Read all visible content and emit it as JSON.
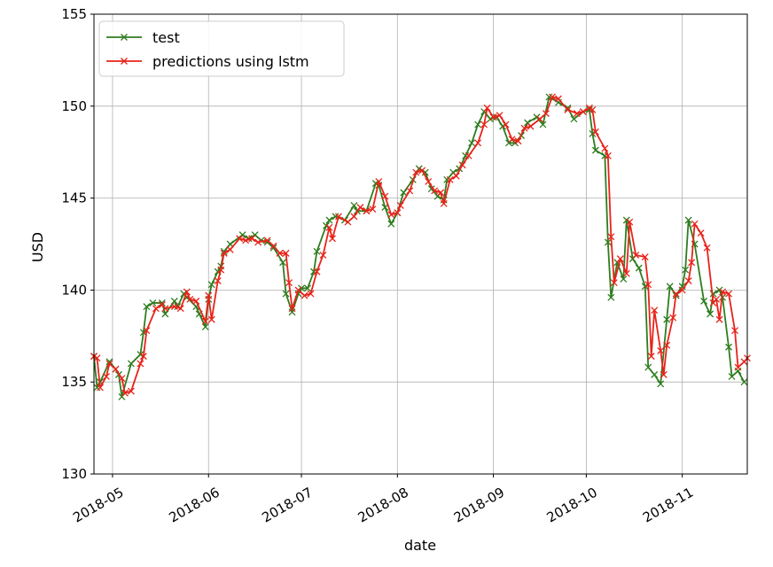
{
  "chart_data": {
    "type": "line",
    "title": "",
    "xlabel": "date",
    "ylabel": "USD",
    "xlim": [
      "2018-04-25",
      "2018-11-22"
    ],
    "ylim": [
      130,
      155
    ],
    "x_ticks": [
      {
        "date": "2018-05-01",
        "label": "2018-05"
      },
      {
        "date": "2018-06-01",
        "label": "2018-06"
      },
      {
        "date": "2018-07-01",
        "label": "2018-07"
      },
      {
        "date": "2018-08-01",
        "label": "2018-08"
      },
      {
        "date": "2018-09-01",
        "label": "2018-09"
      },
      {
        "date": "2018-10-01",
        "label": "2018-10"
      },
      {
        "date": "2018-11-01",
        "label": "2018-11"
      }
    ],
    "y_ticks": [
      130,
      135,
      140,
      145,
      150,
      155
    ],
    "grid": true,
    "legend_position": "top-left",
    "marker": "x",
    "series": [
      {
        "name": "test",
        "color": "#2e7d1f",
        "points": [
          [
            "2018-04-25",
            136.4
          ],
          [
            "2018-04-26",
            134.7
          ],
          [
            "2018-04-27",
            135.0
          ],
          [
            "2018-04-30",
            136.1
          ],
          [
            "2018-05-02",
            135.7
          ],
          [
            "2018-05-03",
            135.4
          ],
          [
            "2018-05-04",
            134.2
          ],
          [
            "2018-05-07",
            136.0
          ],
          [
            "2018-05-10",
            136.5
          ],
          [
            "2018-05-11",
            137.7
          ],
          [
            "2018-05-12",
            139.1
          ],
          [
            "2018-05-14",
            139.3
          ],
          [
            "2018-05-17",
            139.3
          ],
          [
            "2018-05-18",
            138.7
          ],
          [
            "2018-05-21",
            139.4
          ],
          [
            "2018-05-22",
            139.1
          ],
          [
            "2018-05-24",
            139.8
          ],
          [
            "2018-05-25",
            139.6
          ],
          [
            "2018-05-28",
            139.1
          ],
          [
            "2018-05-29",
            138.7
          ],
          [
            "2018-05-31",
            138.0
          ],
          [
            "2018-06-01",
            139.5
          ],
          [
            "2018-06-02",
            140.3
          ],
          [
            "2018-06-04",
            141.0
          ],
          [
            "2018-06-05",
            141.3
          ],
          [
            "2018-06-06",
            142.1
          ],
          [
            "2018-06-08",
            142.5
          ],
          [
            "2018-06-12",
            143.0
          ],
          [
            "2018-06-14",
            142.8
          ],
          [
            "2018-06-16",
            143.0
          ],
          [
            "2018-06-18",
            142.7
          ],
          [
            "2018-06-20",
            142.6
          ],
          [
            "2018-06-22",
            142.3
          ],
          [
            "2018-06-25",
            141.5
          ],
          [
            "2018-06-26",
            139.8
          ],
          [
            "2018-06-28",
            138.8
          ],
          [
            "2018-06-30",
            139.8
          ],
          [
            "2018-07-01",
            140.1
          ],
          [
            "2018-07-03",
            140.1
          ],
          [
            "2018-07-05",
            141.0
          ],
          [
            "2018-07-06",
            142.1
          ],
          [
            "2018-07-09",
            143.5
          ],
          [
            "2018-07-10",
            143.8
          ],
          [
            "2018-07-12",
            144.0
          ],
          [
            "2018-07-15",
            143.8
          ],
          [
            "2018-07-18",
            144.6
          ],
          [
            "2018-07-19",
            144.3
          ],
          [
            "2018-07-22",
            144.3
          ],
          [
            "2018-07-25",
            145.8
          ],
          [
            "2018-07-26",
            145.7
          ],
          [
            "2018-07-28",
            144.5
          ],
          [
            "2018-07-30",
            143.6
          ],
          [
            "2018-08-01",
            144.2
          ],
          [
            "2018-08-03",
            145.3
          ],
          [
            "2018-08-06",
            146.0
          ],
          [
            "2018-08-08",
            146.6
          ],
          [
            "2018-08-10",
            146.4
          ],
          [
            "2018-08-12",
            145.5
          ],
          [
            "2018-08-14",
            145.1
          ],
          [
            "2018-08-16",
            144.9
          ],
          [
            "2018-08-17",
            146.0
          ],
          [
            "2018-08-19",
            146.4
          ],
          [
            "2018-08-21",
            146.6
          ],
          [
            "2018-08-23",
            147.3
          ],
          [
            "2018-08-25",
            148.0
          ],
          [
            "2018-08-27",
            149.0
          ],
          [
            "2018-08-29",
            149.7
          ],
          [
            "2018-08-31",
            149.3
          ],
          [
            "2018-09-02",
            149.4
          ],
          [
            "2018-09-04",
            148.9
          ],
          [
            "2018-09-06",
            148.0
          ],
          [
            "2018-09-08",
            148.0
          ],
          [
            "2018-09-10",
            148.4
          ],
          [
            "2018-09-12",
            149.1
          ],
          [
            "2018-09-15",
            149.4
          ],
          [
            "2018-09-17",
            149.0
          ],
          [
            "2018-09-19",
            150.5
          ],
          [
            "2018-09-22",
            150.2
          ],
          [
            "2018-09-25",
            149.9
          ],
          [
            "2018-09-27",
            149.3
          ],
          [
            "2018-09-30",
            149.7
          ],
          [
            "2018-10-02",
            149.8
          ],
          [
            "2018-10-03",
            148.5
          ],
          [
            "2018-10-04",
            147.6
          ],
          [
            "2018-10-07",
            147.3
          ],
          [
            "2018-10-08",
            142.6
          ],
          [
            "2018-10-09",
            139.6
          ],
          [
            "2018-10-11",
            141.5
          ],
          [
            "2018-10-13",
            140.6
          ],
          [
            "2018-10-14",
            143.8
          ],
          [
            "2018-10-16",
            141.7
          ],
          [
            "2018-10-18",
            141.2
          ],
          [
            "2018-10-20",
            140.2
          ],
          [
            "2018-10-21",
            135.8
          ],
          [
            "2018-10-23",
            135.4
          ],
          [
            "2018-10-25",
            134.9
          ],
          [
            "2018-10-27",
            138.4
          ],
          [
            "2018-10-28",
            140.2
          ],
          [
            "2018-10-30",
            139.7
          ],
          [
            "2018-11-01",
            140.2
          ],
          [
            "2018-11-02",
            141.1
          ],
          [
            "2018-11-03",
            143.8
          ],
          [
            "2018-11-05",
            142.5
          ],
          [
            "2018-11-08",
            139.4
          ],
          [
            "2018-11-10",
            138.7
          ],
          [
            "2018-11-11",
            139.8
          ],
          [
            "2018-11-13",
            140.0
          ],
          [
            "2018-11-14",
            139.6
          ],
          [
            "2018-11-16",
            136.9
          ],
          [
            "2018-11-17",
            135.3
          ],
          [
            "2018-11-19",
            135.6
          ],
          [
            "2018-11-21",
            135.0
          ]
        ]
      },
      {
        "name": "predictions using lstm",
        "color": "#e8231a",
        "points": [
          [
            "2018-04-25",
            136.4
          ],
          [
            "2018-04-26",
            136.3
          ],
          [
            "2018-04-27",
            134.7
          ],
          [
            "2018-04-29",
            135.3
          ],
          [
            "2018-04-30",
            136.0
          ],
          [
            "2018-05-02",
            135.7
          ],
          [
            "2018-05-04",
            135.2
          ],
          [
            "2018-05-05",
            134.4
          ],
          [
            "2018-05-07",
            134.5
          ],
          [
            "2018-05-10",
            136.0
          ],
          [
            "2018-05-11",
            136.4
          ],
          [
            "2018-05-12",
            137.8
          ],
          [
            "2018-05-15",
            139.0
          ],
          [
            "2018-05-17",
            139.2
          ],
          [
            "2018-05-18",
            139.0
          ],
          [
            "2018-05-21",
            139.1
          ],
          [
            "2018-05-23",
            139.0
          ],
          [
            "2018-05-25",
            139.9
          ],
          [
            "2018-05-26",
            139.5
          ],
          [
            "2018-05-28",
            139.4
          ],
          [
            "2018-05-31",
            138.3
          ],
          [
            "2018-06-01",
            139.7
          ],
          [
            "2018-06-02",
            138.4
          ],
          [
            "2018-06-04",
            140.5
          ],
          [
            "2018-06-05",
            141.1
          ],
          [
            "2018-06-06",
            142.0
          ],
          [
            "2018-06-08",
            142.2
          ],
          [
            "2018-06-11",
            142.8
          ],
          [
            "2018-06-13",
            142.7
          ],
          [
            "2018-06-15",
            142.8
          ],
          [
            "2018-06-17",
            142.6
          ],
          [
            "2018-06-20",
            142.7
          ],
          [
            "2018-06-22",
            142.4
          ],
          [
            "2018-06-24",
            142.0
          ],
          [
            "2018-06-26",
            142.0
          ],
          [
            "2018-06-27",
            140.4
          ],
          [
            "2018-06-28",
            139.0
          ],
          [
            "2018-06-30",
            140.0
          ],
          [
            "2018-07-02",
            139.7
          ],
          [
            "2018-07-04",
            139.8
          ],
          [
            "2018-07-06",
            141.0
          ],
          [
            "2018-07-08",
            141.9
          ],
          [
            "2018-07-10",
            143.4
          ],
          [
            "2018-07-11",
            142.8
          ],
          [
            "2018-07-13",
            144.0
          ],
          [
            "2018-07-16",
            143.7
          ],
          [
            "2018-07-18",
            144.0
          ],
          [
            "2018-07-20",
            144.5
          ],
          [
            "2018-07-22",
            144.3
          ],
          [
            "2018-07-24",
            144.4
          ],
          [
            "2018-07-26",
            145.9
          ],
          [
            "2018-07-28",
            145.1
          ],
          [
            "2018-07-30",
            144.1
          ],
          [
            "2018-08-01",
            144.2
          ],
          [
            "2018-08-02",
            144.6
          ],
          [
            "2018-08-05",
            145.4
          ],
          [
            "2018-08-07",
            146.4
          ],
          [
            "2018-08-09",
            146.5
          ],
          [
            "2018-08-11",
            145.9
          ],
          [
            "2018-08-13",
            145.4
          ],
          [
            "2018-08-15",
            145.3
          ],
          [
            "2018-08-16",
            144.7
          ],
          [
            "2018-08-18",
            146.0
          ],
          [
            "2018-08-20",
            146.2
          ],
          [
            "2018-08-22",
            146.8
          ],
          [
            "2018-08-24",
            147.3
          ],
          [
            "2018-08-27",
            148.0
          ],
          [
            "2018-08-29",
            149.0
          ],
          [
            "2018-08-30",
            149.9
          ],
          [
            "2018-09-01",
            149.4
          ],
          [
            "2018-09-03",
            149.5
          ],
          [
            "2018-09-05",
            149.0
          ],
          [
            "2018-09-07",
            148.2
          ],
          [
            "2018-09-09",
            148.1
          ],
          [
            "2018-09-11",
            148.8
          ],
          [
            "2018-09-13",
            148.9
          ],
          [
            "2018-09-16",
            149.3
          ],
          [
            "2018-09-18",
            149.6
          ],
          [
            "2018-09-20",
            150.5
          ],
          [
            "2018-09-22",
            150.4
          ],
          [
            "2018-09-25",
            149.8
          ],
          [
            "2018-09-28",
            149.6
          ],
          [
            "2018-09-30",
            149.7
          ],
          [
            "2018-10-02",
            149.9
          ],
          [
            "2018-10-03",
            149.8
          ],
          [
            "2018-10-04",
            148.6
          ],
          [
            "2018-10-07",
            147.7
          ],
          [
            "2018-10-08",
            147.3
          ],
          [
            "2018-10-09",
            142.9
          ],
          [
            "2018-10-10",
            140.4
          ],
          [
            "2018-10-12",
            141.7
          ],
          [
            "2018-10-14",
            140.9
          ],
          [
            "2018-10-15",
            143.7
          ],
          [
            "2018-10-17",
            141.9
          ],
          [
            "2018-10-20",
            141.8
          ],
          [
            "2018-10-21",
            140.3
          ],
          [
            "2018-10-22",
            136.4
          ],
          [
            "2018-10-23",
            138.9
          ],
          [
            "2018-10-25",
            136.7
          ],
          [
            "2018-10-26",
            135.4
          ],
          [
            "2018-10-27",
            137.0
          ],
          [
            "2018-10-29",
            138.5
          ],
          [
            "2018-10-30",
            139.8
          ],
          [
            "2018-11-01",
            140.0
          ],
          [
            "2018-11-03",
            140.5
          ],
          [
            "2018-11-04",
            141.5
          ],
          [
            "2018-11-05",
            143.6
          ],
          [
            "2018-11-07",
            143.1
          ],
          [
            "2018-11-09",
            142.3
          ],
          [
            "2018-11-11",
            139.3
          ],
          [
            "2018-11-12",
            139.5
          ],
          [
            "2018-11-13",
            138.4
          ],
          [
            "2018-11-14",
            139.9
          ],
          [
            "2018-11-16",
            139.8
          ],
          [
            "2018-11-18",
            137.8
          ],
          [
            "2018-11-19",
            135.8
          ],
          [
            "2018-11-21",
            136.1
          ],
          [
            "2018-11-22",
            136.3
          ]
        ]
      }
    ]
  }
}
